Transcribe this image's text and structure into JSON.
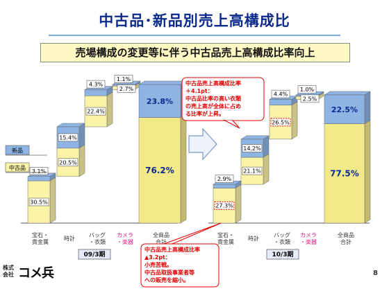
{
  "title": "中古品･新品別売上高構成比",
  "subtitle": "売場構成の変更等に伴う中古品売上高構成比率向上",
  "page_number": "8",
  "logo": {
    "small_text": "株式会社",
    "main_text": "コメ兵"
  },
  "legend": {
    "new": "新品",
    "used": "中古品"
  },
  "colors": {
    "new": "#8eb4e3",
    "used": "#fbf3a8",
    "total_used": "#f2e98a"
  },
  "chart_data": [
    {
      "type": "bar",
      "subtype": "waterfall-stacked",
      "period": "09/3期",
      "categories": [
        "宝石・貴金属",
        "時計",
        "バッグ・衣類",
        "カメラ・楽器",
        "全商品合計"
      ],
      "series": [
        {
          "name": "中古品",
          "values": [
            30.5,
            20.5,
            22.4,
            2.7,
            76.2
          ]
        },
        {
          "name": "新品",
          "values": [
            3.1,
            15.4,
            4.3,
            1.1,
            23.8
          ]
        }
      ]
    },
    {
      "type": "bar",
      "subtype": "waterfall-stacked",
      "period": "10/3期",
      "categories": [
        "宝石・貴金属",
        "時計",
        "バッグ・衣類",
        "カメラ・楽器",
        "全商品合計"
      ],
      "series": [
        {
          "name": "中古品",
          "values": [
            27.3,
            21.1,
            26.5,
            2.5,
            77.5
          ]
        },
        {
          "name": "新品",
          "values": [
            2.9,
            14.2,
            4.4,
            1.0,
            22.5
          ]
        }
      ]
    }
  ],
  "callouts": {
    "top": "中古品売上高構成比率\n＋4.1pt：\n中古品比率の高い衣類\nの売上高が全体に占め\nる比率が上昇。",
    "bottom": "中古品売上高構成比率\n▲3.2pt：\n小売苦戦。\n中古品取扱事業者等\nへの販売を縮小。"
  }
}
